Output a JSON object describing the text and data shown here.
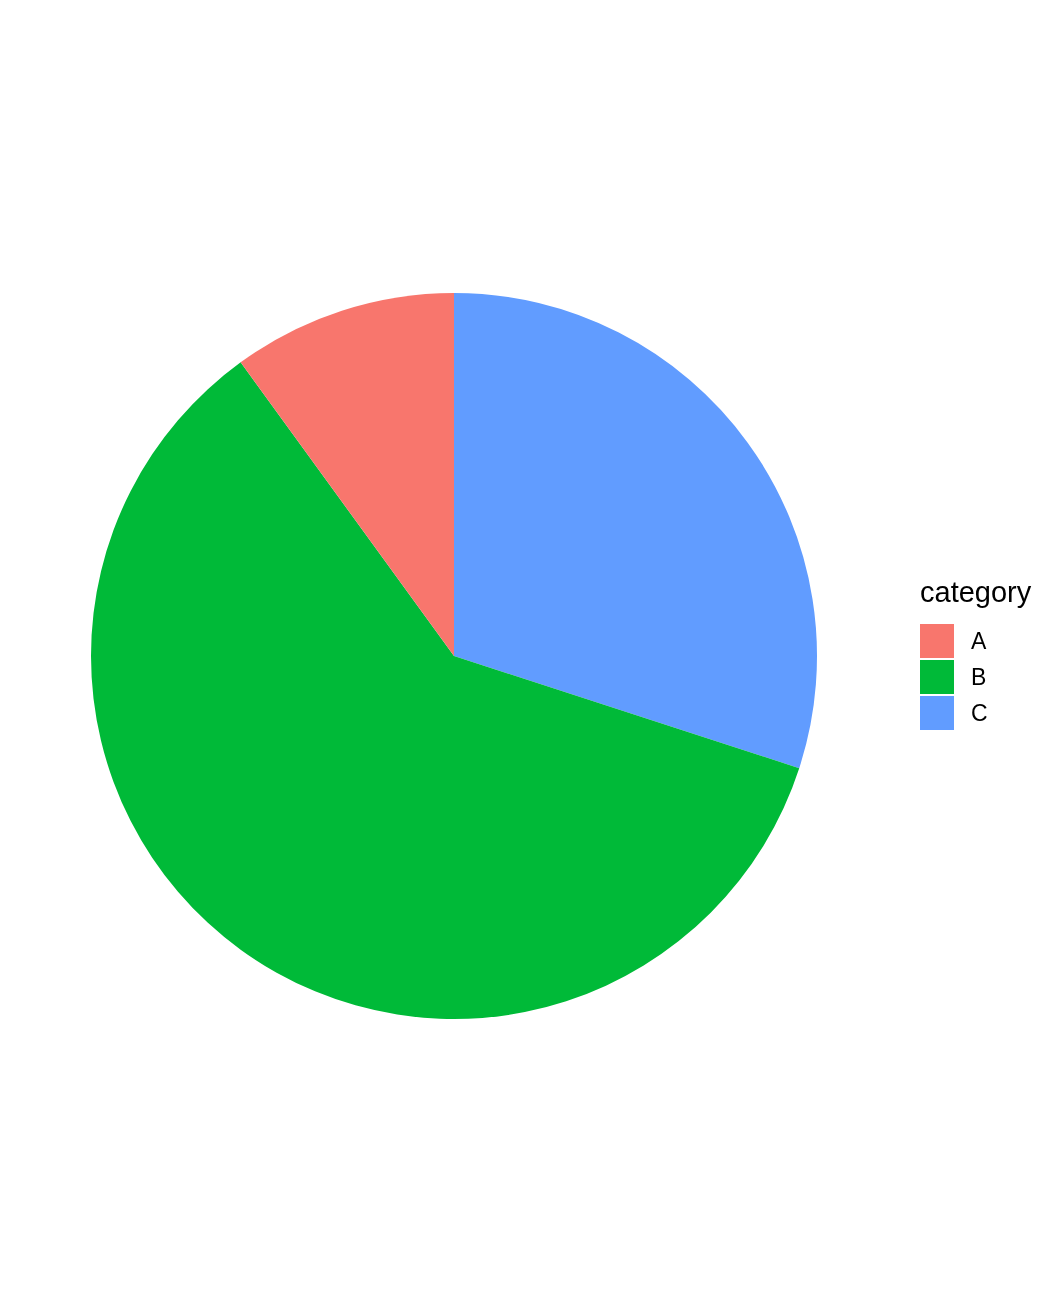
{
  "chart_data": {
    "type": "pie",
    "legend_title": "category",
    "legend": "right",
    "categories": [
      "A",
      "B",
      "C"
    ],
    "values": [
      10,
      60,
      30
    ],
    "colors": [
      "#f8766d",
      "#00ba38",
      "#619cff"
    ]
  }
}
